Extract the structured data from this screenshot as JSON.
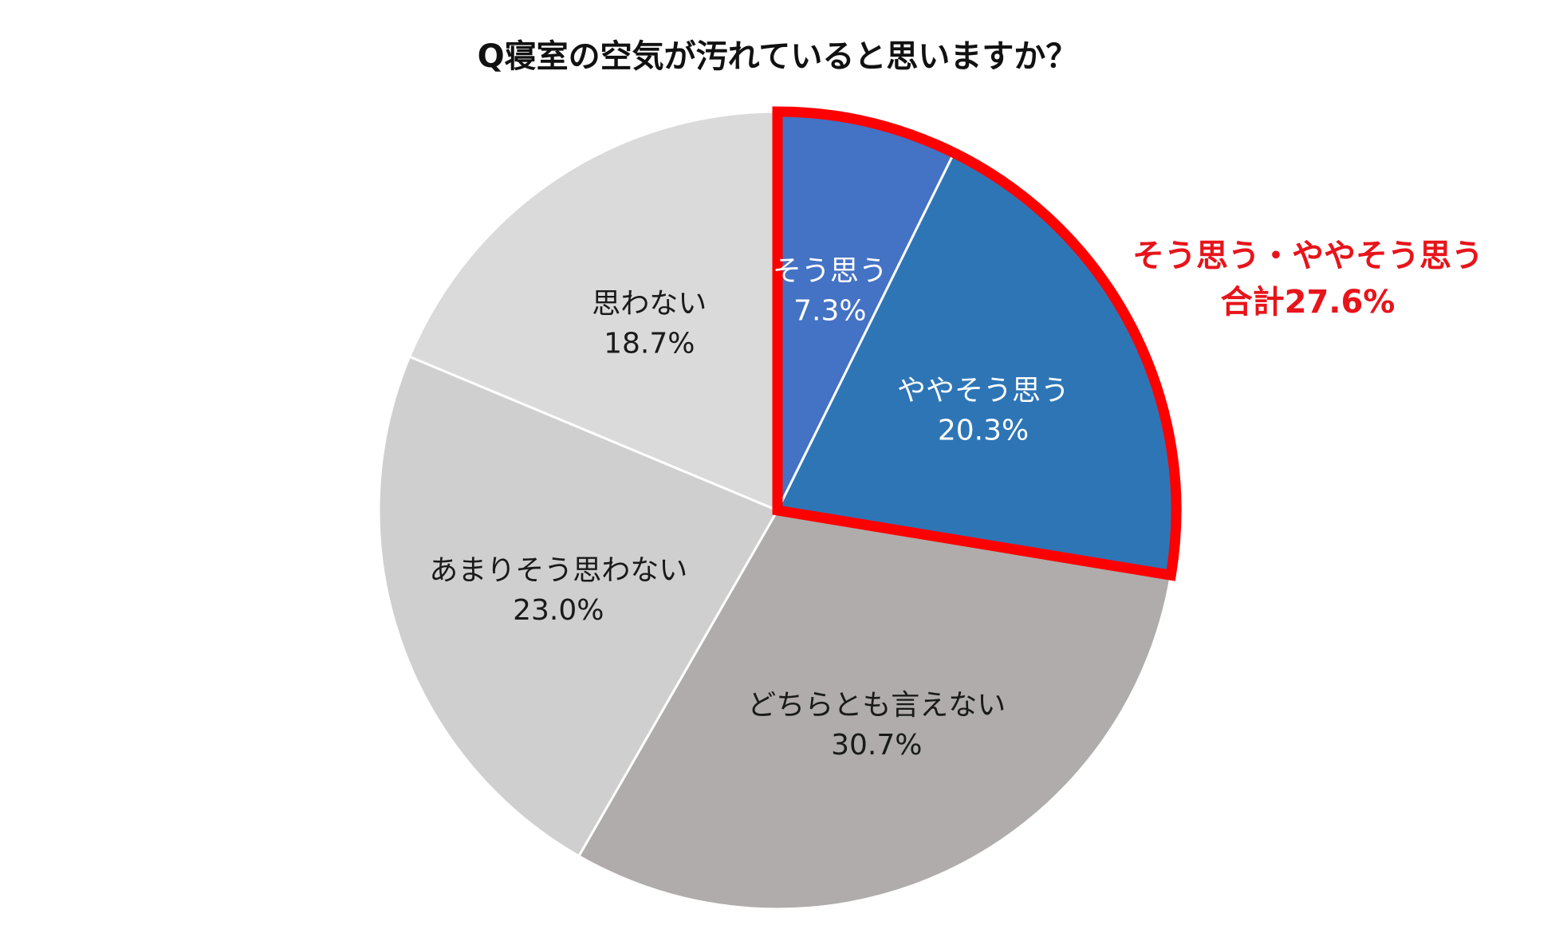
{
  "chart_data": {
    "type": "pie",
    "title": "Q寝室の空気が汚れていると思いますか？",
    "slices": [
      {
        "label": "そう思う",
        "value": 7.3,
        "value_label": "7.3%",
        "color": "#4472c4",
        "text_color": "#ffffff"
      },
      {
        "label": "ややそう思う",
        "value": 20.3,
        "value_label": "20.3%",
        "color": "#2e75b6",
        "text_color": "#ffffff"
      },
      {
        "label": "どちらとも言えない",
        "value": 30.7,
        "value_label": "30.7%",
        "color": "#afacab",
        "text_color": "#1a1a1a"
      },
      {
        "label": "あまりそう思わない",
        "value": 23.0,
        "value_label": "23.0%",
        "color": "#d0cfd0",
        "text_color": "#1a1a1a"
      },
      {
        "label": "思わない",
        "value": 18.7,
        "value_label": "18.7%",
        "color": "#dadada",
        "text_color": "#1a1a1a"
      }
    ],
    "start_angle": "12 o'clock",
    "direction": "clockwise",
    "highlight": {
      "slices": [
        0,
        1
      ],
      "border_color": "#ff0000",
      "line1": "そう思う・ややそう思う",
      "line2": "合計27.6%",
      "text_color": "#e8141b"
    }
  }
}
